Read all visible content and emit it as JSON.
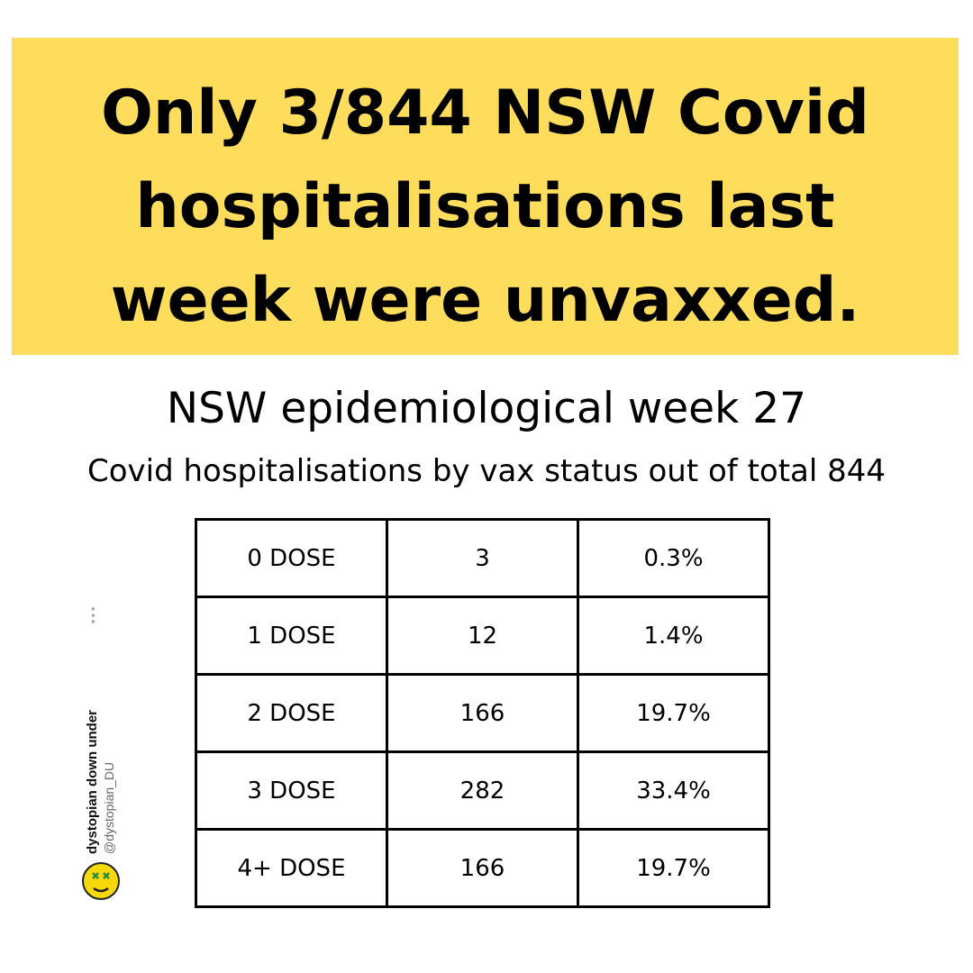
{
  "banner": {
    "color": "#fedd5c",
    "lines": [
      "Only 3/844 NSW Covid",
      "hospitalisations last",
      "week were unvaxxed."
    ]
  },
  "subtitle": {
    "line1": "NSW epidemiological week 27",
    "line2": "Covid hospitalisations by vax status out of total 844"
  },
  "table": {
    "rows": [
      {
        "status": "0 DOSE",
        "count": "3",
        "percent": "0.3%"
      },
      {
        "status": "1 DOSE",
        "count": "12",
        "percent": "1.4%"
      },
      {
        "status": "2 DOSE",
        "count": "166",
        "percent": "19.7%"
      },
      {
        "status": "3 DOSE",
        "count": "282",
        "percent": "33.4%"
      },
      {
        "status": "4+ DOSE",
        "count": "166",
        "percent": "19.7%"
      }
    ]
  },
  "watermark": {
    "name": "dystopian down under",
    "handle": "@dystopian_DU",
    "more_icon": "ellipsis-icon",
    "logo_icon": "smiley-x-eyes-icon"
  }
}
